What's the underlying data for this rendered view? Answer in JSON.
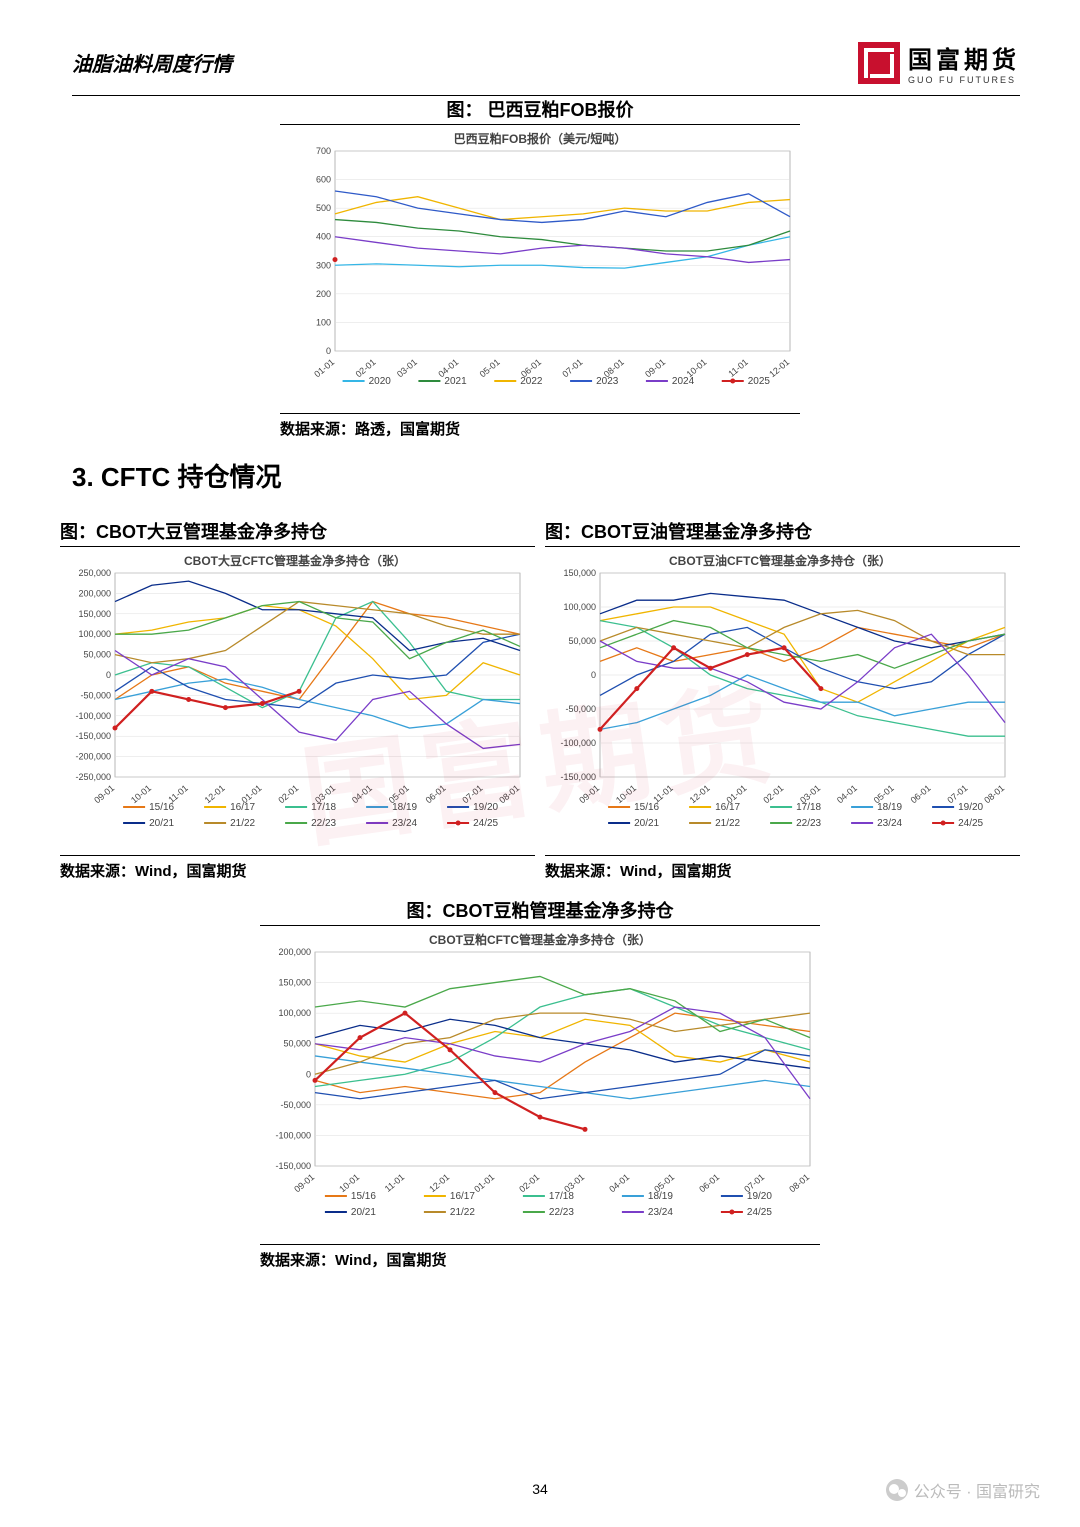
{
  "header": {
    "title": "油脂油料周度行情"
  },
  "logo": {
    "cn": "国富期货",
    "en": "GUO FU FUTURES"
  },
  "page_number": "34",
  "wechat": "公众号 · 国富研究",
  "watermark": "国富期货",
  "section_heading": "3. CFTC 持仓情况",
  "palette_years": {
    "2020": "#35b6e6",
    "2021": "#2e8b3d",
    "2022": "#f0b500",
    "2023": "#2f5ac8",
    "2024": "#7a3dc8",
    "2025": "#d02020"
  },
  "palette_seasons": {
    "15/16": "#e67817",
    "16/17": "#f0b500",
    "17/18": "#3bbf8f",
    "18/19": "#39a0d8",
    "19/20": "#1f4fb0",
    "20/21": "#0a2d8a",
    "21/22": "#b88a2a",
    "22/23": "#4aa84a",
    "23/24": "#7a3dc8",
    "24/25": "#d02020"
  },
  "chart_top": {
    "title": "图： 巴西豆粕FOB报价",
    "subtitle": "巴西豆粕FOB报价（美元/短吨）",
    "source": "数据来源：路透，国富期货",
    "ylim": [
      0,
      700
    ],
    "ytick_step": 100,
    "x_labels": [
      "01-01",
      "02-01",
      "03-01",
      "04-01",
      "05-01",
      "06-01",
      "07-01",
      "08-01",
      "09-01",
      "10-01",
      "11-01",
      "12-01"
    ],
    "legend": [
      "2020",
      "2021",
      "2022",
      "2023",
      "2024",
      "2025"
    ],
    "series": {
      "2020": [
        300,
        305,
        300,
        295,
        300,
        300,
        292,
        290,
        310,
        330,
        370,
        400
      ],
      "2021": [
        460,
        450,
        430,
        420,
        400,
        390,
        370,
        360,
        350,
        350,
        370,
        420
      ],
      "2022": [
        480,
        520,
        540,
        500,
        460,
        470,
        480,
        500,
        490,
        490,
        520,
        530
      ],
      "2023": [
        560,
        540,
        500,
        480,
        460,
        450,
        460,
        490,
        470,
        520,
        550,
        470
      ],
      "2024": [
        400,
        380,
        360,
        350,
        340,
        360,
        370,
        360,
        340,
        330,
        310,
        320
      ],
      "2025": [
        320,
        null,
        null,
        null,
        null,
        null,
        null,
        null,
        null,
        null,
        null,
        null
      ]
    }
  },
  "chart_left": {
    "title": "图：CBOT大豆管理基金净多持仓",
    "subtitle": "CBOT大豆CFTC管理基金净多持仓（张）",
    "source": "数据来源：Wind，国富期货",
    "ylim": [
      -250000,
      250000
    ],
    "ytick_step": 50000,
    "x_labels": [
      "09-01",
      "10-01",
      "11-01",
      "12-01",
      "01-01",
      "02-01",
      "03-01",
      "04-01",
      "05-01",
      "06-01",
      "07-01",
      "08-01"
    ],
    "legend": [
      "15/16",
      "16/17",
      "17/18",
      "18/19",
      "19/20",
      "20/21",
      "21/22",
      "22/23",
      "23/24",
      "24/25"
    ],
    "series": {
      "15/16": [
        -60000,
        0,
        20000,
        -20000,
        -40000,
        -60000,
        60000,
        180000,
        150000,
        140000,
        120000,
        100000
      ],
      "16/17": [
        100000,
        110000,
        130000,
        140000,
        170000,
        160000,
        120000,
        40000,
        -60000,
        -50000,
        30000,
        0
      ],
      "17/18": [
        0,
        30000,
        20000,
        -30000,
        -80000,
        -40000,
        140000,
        180000,
        80000,
        -40000,
        -60000,
        -60000
      ],
      "18/19": [
        -60000,
        -40000,
        -20000,
        -10000,
        -30000,
        -60000,
        -80000,
        -100000,
        -130000,
        -120000,
        -60000,
        -70000
      ],
      "19/20": [
        -40000,
        20000,
        -30000,
        -60000,
        -70000,
        -80000,
        -20000,
        0,
        -10000,
        0,
        80000,
        100000
      ],
      "20/21": [
        180000,
        220000,
        230000,
        200000,
        160000,
        160000,
        150000,
        140000,
        60000,
        80000,
        90000,
        60000
      ],
      "21/22": [
        50000,
        30000,
        40000,
        60000,
        120000,
        180000,
        170000,
        160000,
        150000,
        120000,
        100000,
        100000
      ],
      "22/23": [
        100000,
        100000,
        110000,
        140000,
        170000,
        180000,
        140000,
        130000,
        40000,
        80000,
        110000,
        70000
      ],
      "23/24": [
        60000,
        0,
        40000,
        20000,
        -60000,
        -140000,
        -160000,
        -60000,
        -40000,
        -120000,
        -180000,
        -170000
      ],
      "24/25": [
        -130000,
        -40000,
        -60000,
        -80000,
        -70000,
        -40000,
        null,
        null,
        null,
        null,
        null,
        null
      ]
    }
  },
  "chart_right": {
    "title": "图：CBOT豆油管理基金净多持仓",
    "subtitle": "CBOT豆油CFTC管理基金净多持仓（张）",
    "source": "数据来源：Wind，国富期货",
    "ylim": [
      -150000,
      150000
    ],
    "ytick_step": 50000,
    "x_labels": [
      "09-01",
      "10-01",
      "11-01",
      "12-01",
      "01-01",
      "02-01",
      "03-01",
      "04-01",
      "05-01",
      "06-01",
      "07-01",
      "08-01"
    ],
    "legend": [
      "15/16",
      "16/17",
      "17/18",
      "18/19",
      "19/20",
      "20/21",
      "21/22",
      "22/23",
      "23/24",
      "24/25"
    ],
    "series": {
      "15/16": [
        20000,
        40000,
        20000,
        30000,
        40000,
        20000,
        40000,
        70000,
        60000,
        50000,
        40000,
        60000
      ],
      "16/17": [
        80000,
        90000,
        100000,
        100000,
        80000,
        60000,
        -20000,
        -40000,
        -10000,
        20000,
        50000,
        70000
      ],
      "17/18": [
        80000,
        70000,
        40000,
        0,
        -20000,
        -30000,
        -40000,
        -60000,
        -70000,
        -80000,
        -90000,
        -90000
      ],
      "18/19": [
        -80000,
        -70000,
        -50000,
        -30000,
        0,
        -20000,
        -40000,
        -40000,
        -60000,
        -50000,
        -40000,
        -40000
      ],
      "19/20": [
        -30000,
        0,
        20000,
        60000,
        70000,
        40000,
        10000,
        -10000,
        -20000,
        -10000,
        30000,
        60000
      ],
      "20/21": [
        90000,
        110000,
        110000,
        120000,
        115000,
        110000,
        90000,
        70000,
        50000,
        40000,
        50000,
        60000
      ],
      "21/22": [
        50000,
        70000,
        60000,
        50000,
        40000,
        70000,
        90000,
        95000,
        80000,
        50000,
        30000,
        30000
      ],
      "22/23": [
        40000,
        60000,
        80000,
        70000,
        40000,
        30000,
        20000,
        30000,
        10000,
        30000,
        50000,
        60000
      ],
      "23/24": [
        50000,
        20000,
        10000,
        10000,
        -10000,
        -40000,
        -50000,
        -10000,
        40000,
        60000,
        0,
        -70000
      ],
      "24/25": [
        -80000,
        -20000,
        40000,
        10000,
        30000,
        40000,
        -20000,
        null,
        null,
        null,
        null,
        null
      ]
    }
  },
  "chart_bottom": {
    "title": "图：CBOT豆粕管理基金净多持仓",
    "subtitle": "CBOT豆粕CFTC管理基金净多持仓（张）",
    "source": "数据来源：Wind，国富期货",
    "ylim": [
      -150000,
      200000
    ],
    "ytick_step": 50000,
    "x_labels": [
      "09-01",
      "10-01",
      "11-01",
      "12-01",
      "01-01",
      "02-01",
      "03-01",
      "04-01",
      "05-01",
      "06-01",
      "07-01",
      "08-01"
    ],
    "legend": [
      "15/16",
      "16/17",
      "17/18",
      "18/19",
      "19/20",
      "20/21",
      "21/22",
      "22/23",
      "23/24",
      "24/25"
    ],
    "series": {
      "15/16": [
        -10000,
        -30000,
        -20000,
        -30000,
        -40000,
        -30000,
        20000,
        60000,
        100000,
        90000,
        80000,
        70000
      ],
      "16/17": [
        50000,
        30000,
        20000,
        50000,
        70000,
        60000,
        90000,
        80000,
        30000,
        20000,
        40000,
        20000
      ],
      "17/18": [
        -20000,
        -10000,
        0,
        20000,
        60000,
        110000,
        130000,
        140000,
        110000,
        80000,
        60000,
        40000
      ],
      "18/19": [
        30000,
        20000,
        10000,
        0,
        -10000,
        -20000,
        -30000,
        -40000,
        -30000,
        -20000,
        -10000,
        -20000
      ],
      "19/20": [
        -30000,
        -40000,
        -30000,
        -20000,
        -10000,
        -40000,
        -30000,
        -20000,
        -10000,
        0,
        40000,
        30000
      ],
      "20/21": [
        60000,
        80000,
        70000,
        90000,
        80000,
        60000,
        50000,
        40000,
        20000,
        30000,
        20000,
        10000
      ],
      "21/22": [
        0,
        20000,
        50000,
        60000,
        90000,
        100000,
        100000,
        90000,
        70000,
        80000,
        90000,
        100000
      ],
      "22/23": [
        110000,
        120000,
        110000,
        140000,
        150000,
        160000,
        130000,
        140000,
        120000,
        70000,
        90000,
        60000
      ],
      "23/24": [
        50000,
        40000,
        60000,
        50000,
        30000,
        20000,
        50000,
        70000,
        110000,
        100000,
        60000,
        -40000
      ],
      "24/25": [
        -10000,
        60000,
        100000,
        40000,
        -30000,
        -70000,
        -90000,
        null,
        null,
        null,
        null,
        null
      ]
    }
  }
}
